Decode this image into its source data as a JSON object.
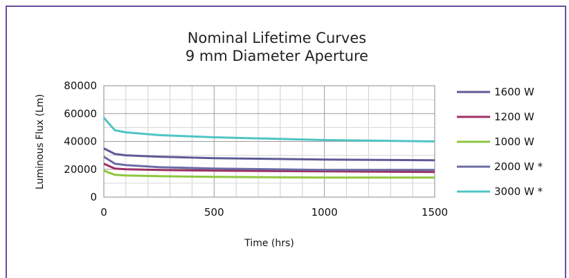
{
  "chart_data": {
    "type": "line",
    "title": [
      "Nominal Lifetime Curves",
      "9 mm Diameter Aperture"
    ],
    "xlabel": "Time (hrs)",
    "ylabel": "Luminous Flux (Lm)",
    "xlim": [
      0,
      1500
    ],
    "ylim": [
      0,
      80000
    ],
    "xticks": [
      0,
      500,
      1000,
      1500
    ],
    "xtick_labels": [
      "0",
      "500",
      "1000",
      "1500"
    ],
    "yticks": [
      0,
      20000,
      40000,
      60000,
      80000
    ],
    "ytick_labels": [
      "0",
      "20000",
      "40000",
      "60000",
      "80000"
    ],
    "grid": true,
    "legend_position": "right",
    "x": [
      0,
      50,
      100,
      250,
      500,
      1000,
      1500
    ],
    "series": [
      {
        "name": "1600 W",
        "color": "#5e5a96",
        "values": [
          35000,
          31000,
          30000,
          29000,
          28000,
          27000,
          26500
        ]
      },
      {
        "name": "1200 W",
        "color": "#9c2f63",
        "values": [
          24000,
          20500,
          20000,
          19500,
          19000,
          18500,
          18000
        ]
      },
      {
        "name": "1000 W",
        "color": "#8cc63f",
        "values": [
          19000,
          16000,
          15500,
          15000,
          14500,
          14000,
          14000
        ]
      },
      {
        "name": "2000 W *",
        "color": "#6b6ba6",
        "values": [
          29000,
          24000,
          23000,
          21500,
          20500,
          19500,
          19500
        ]
      },
      {
        "name": "3000 W *",
        "color": "#4fc4c4",
        "values": [
          57000,
          48000,
          46500,
          44500,
          43000,
          41000,
          40000
        ]
      }
    ]
  }
}
